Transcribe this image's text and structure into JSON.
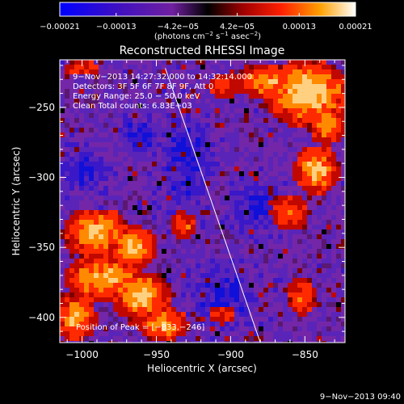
{
  "chart_data": {
    "type": "heatmap",
    "title": "Reconstructed RHESSI Image",
    "xlabel": "Heliocentric X (arcsec)",
    "ylabel": "Heliocentric Y (arcsec)",
    "xlim": [
      -1015,
      -823
    ],
    "ylim": [
      -418,
      -216
    ],
    "xticks": [
      {
        "value": -1000,
        "label": "−1000"
      },
      {
        "value": -950,
        "label": "−950"
      },
      {
        "value": -900,
        "label": "−900"
      },
      {
        "value": -850,
        "label": "−850"
      }
    ],
    "yticks": [
      {
        "value": -250,
        "label": "−250"
      },
      {
        "value": -300,
        "label": "−300"
      },
      {
        "value": -350,
        "label": "−350"
      },
      {
        "value": -400,
        "label": "−400"
      }
    ],
    "colorbar": {
      "range": [
        -0.00021,
        0.00021
      ],
      "ticks": [
        {
          "value": -0.00021,
          "label": "−0.00021"
        },
        {
          "value": -0.00013,
          "label": "−0.00013"
        },
        {
          "value": -4.2e-05,
          "label": "−4.2e−05"
        },
        {
          "value": 4.2e-05,
          "label": "4.2e−05"
        },
        {
          "value": 0.00013,
          "label": "0.00013"
        },
        {
          "value": 0.00021,
          "label": "0.00021"
        }
      ],
      "unit_label": {
        "pre": "(photons cm",
        "e1": "−2",
        "m1": " s",
        "e2": "−1",
        "m2": " asec",
        "e3": "−2",
        "post": ")"
      },
      "colors": [
        "#0000ff",
        "#4000c0",
        "#7f1fa0",
        "#000000",
        "#8b0000",
        "#ff2000",
        "#ffa000",
        "#ffffff"
      ]
    },
    "annotations": [
      "9−Nov−2013 14:27:32.000 to 14:32:14.000",
      "Detectors: 3F 5F 6F 7F 8F 9F, Att 0",
      "Energy Range: 25.0 − 50.0 keV",
      "Clean     Total counts: 6.83E+03"
    ],
    "peak_label": "Position of Peak = [−833,−246]",
    "peak": [
      -833,
      -246
    ],
    "limb_line": [
      [
        -944,
        -222
      ],
      [
        -880,
        -418
      ]
    ],
    "hot_regions": [
      {
        "x": -848,
        "y": -240,
        "intensity": 1.0,
        "rx": 22,
        "ry": 18
      },
      {
        "x": -875,
        "y": -232,
        "intensity": 0.75,
        "rx": 18,
        "ry": 10
      },
      {
        "x": -835,
        "y": -262,
        "intensity": 0.8,
        "rx": 10,
        "ry": 12
      },
      {
        "x": -842,
        "y": -295,
        "intensity": 0.85,
        "rx": 12,
        "ry": 14
      },
      {
        "x": -860,
        "y": -325,
        "intensity": 0.55,
        "rx": 12,
        "ry": 12
      },
      {
        "x": -905,
        "y": -235,
        "intensity": 0.5,
        "rx": 10,
        "ry": 8
      },
      {
        "x": -1000,
        "y": -222,
        "intensity": 0.45,
        "rx": 12,
        "ry": 6
      },
      {
        "x": -990,
        "y": -340,
        "intensity": 0.85,
        "rx": 18,
        "ry": 14
      },
      {
        "x": -965,
        "y": -350,
        "intensity": 0.9,
        "rx": 12,
        "ry": 12
      },
      {
        "x": -985,
        "y": -372,
        "intensity": 0.8,
        "rx": 22,
        "ry": 14
      },
      {
        "x": -960,
        "y": -385,
        "intensity": 0.85,
        "rx": 16,
        "ry": 14
      },
      {
        "x": -945,
        "y": -405,
        "intensity": 0.7,
        "rx": 14,
        "ry": 10
      },
      {
        "x": -1005,
        "y": -400,
        "intensity": 0.75,
        "rx": 12,
        "ry": 14
      },
      {
        "x": -932,
        "y": -335,
        "intensity": 0.5,
        "rx": 8,
        "ry": 10
      },
      {
        "x": -852,
        "y": -385,
        "intensity": 0.45,
        "rx": 10,
        "ry": 14
      },
      {
        "x": -905,
        "y": -398,
        "intensity": 0.35,
        "rx": 10,
        "ry": 8
      }
    ],
    "cold_regions": [
      {
        "x": -930,
        "y": -290,
        "rx": 14,
        "ry": 30
      },
      {
        "x": -905,
        "y": -385,
        "rx": 20,
        "ry": 18
      },
      {
        "x": -880,
        "y": -320,
        "rx": 16,
        "ry": 16
      },
      {
        "x": -960,
        "y": -270,
        "rx": 12,
        "ry": 12
      },
      {
        "x": -1000,
        "y": -295,
        "rx": 14,
        "ry": 12
      }
    ]
  },
  "timestamp": "9−Nov−2013 09:40"
}
